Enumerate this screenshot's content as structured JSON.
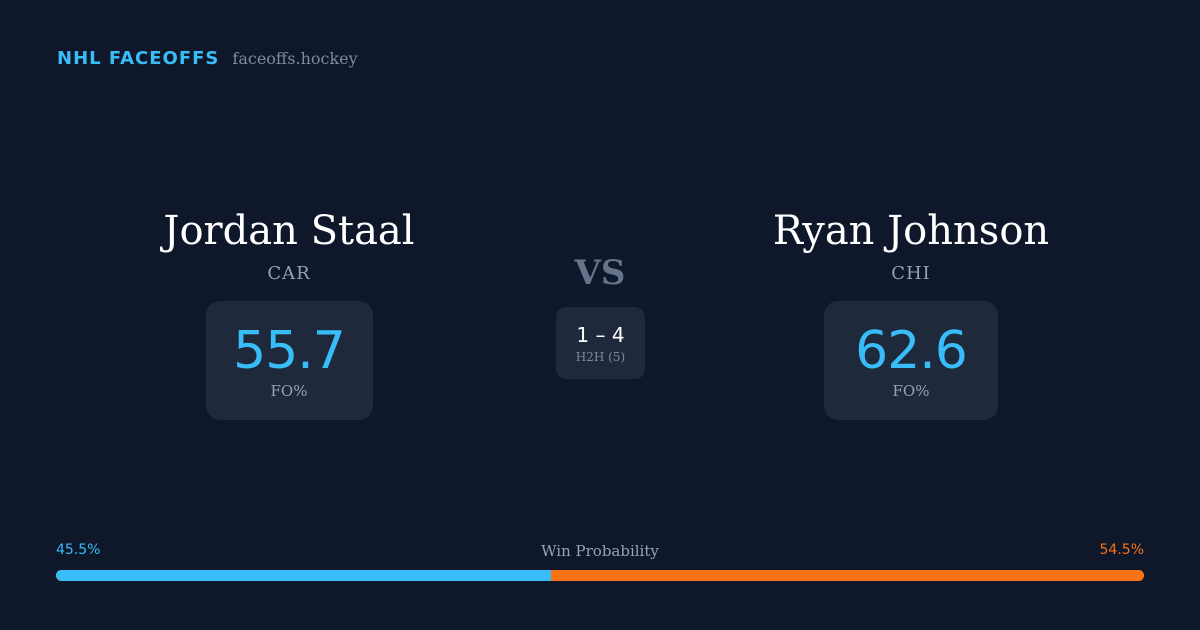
{
  "brand": {
    "name": "NHL FACEOFFS",
    "site": "faceoffs.hockey"
  },
  "players": {
    "left": {
      "name": "Jordan Staal",
      "team": "CAR",
      "stat_value": "55.7",
      "stat_label": "FO%"
    },
    "right": {
      "name": "Ryan Johnson",
      "team": "CHI",
      "stat_value": "62.6",
      "stat_label": "FO%"
    }
  },
  "versus": {
    "label": "VS",
    "h2h_record": "1 – 4",
    "h2h_label": "H2H (5)"
  },
  "win_probability": {
    "title": "Win Probability",
    "left_label": "45.5%",
    "right_label": "54.5%",
    "left_percent": 45.5,
    "right_percent": 54.5
  },
  "colors": {
    "background": "#0f172a",
    "card": "#1e293b",
    "accent_left": "#38bdf8",
    "accent_right": "#f97316"
  }
}
